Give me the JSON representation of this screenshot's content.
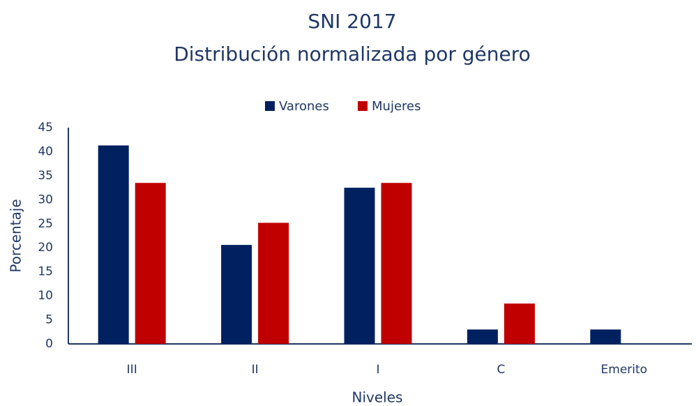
{
  "chart_data": {
    "type": "bar",
    "title": [
      "SNI 2017",
      "Distribución normalizada por género"
    ],
    "x_label": "Niveles",
    "y_label": "Porcentaje",
    "categories": [
      "III",
      "II",
      "I",
      "C",
      "Emerito"
    ],
    "series": [
      {
        "name": "Varones",
        "color": "#002060",
        "values": [
          41.3,
          20.6,
          32.5,
          3.0,
          3.0
        ]
      },
      {
        "name": "Mujeres",
        "color": "#c00000",
        "values": [
          33.5,
          25.2,
          33.5,
          8.4,
          0
        ]
      }
    ],
    "ylim": [
      0,
      45
    ],
    "yticks": [
      0,
      5,
      10,
      15,
      20,
      25,
      30,
      35,
      40,
      45
    ],
    "grid": false,
    "legend": "top"
  }
}
